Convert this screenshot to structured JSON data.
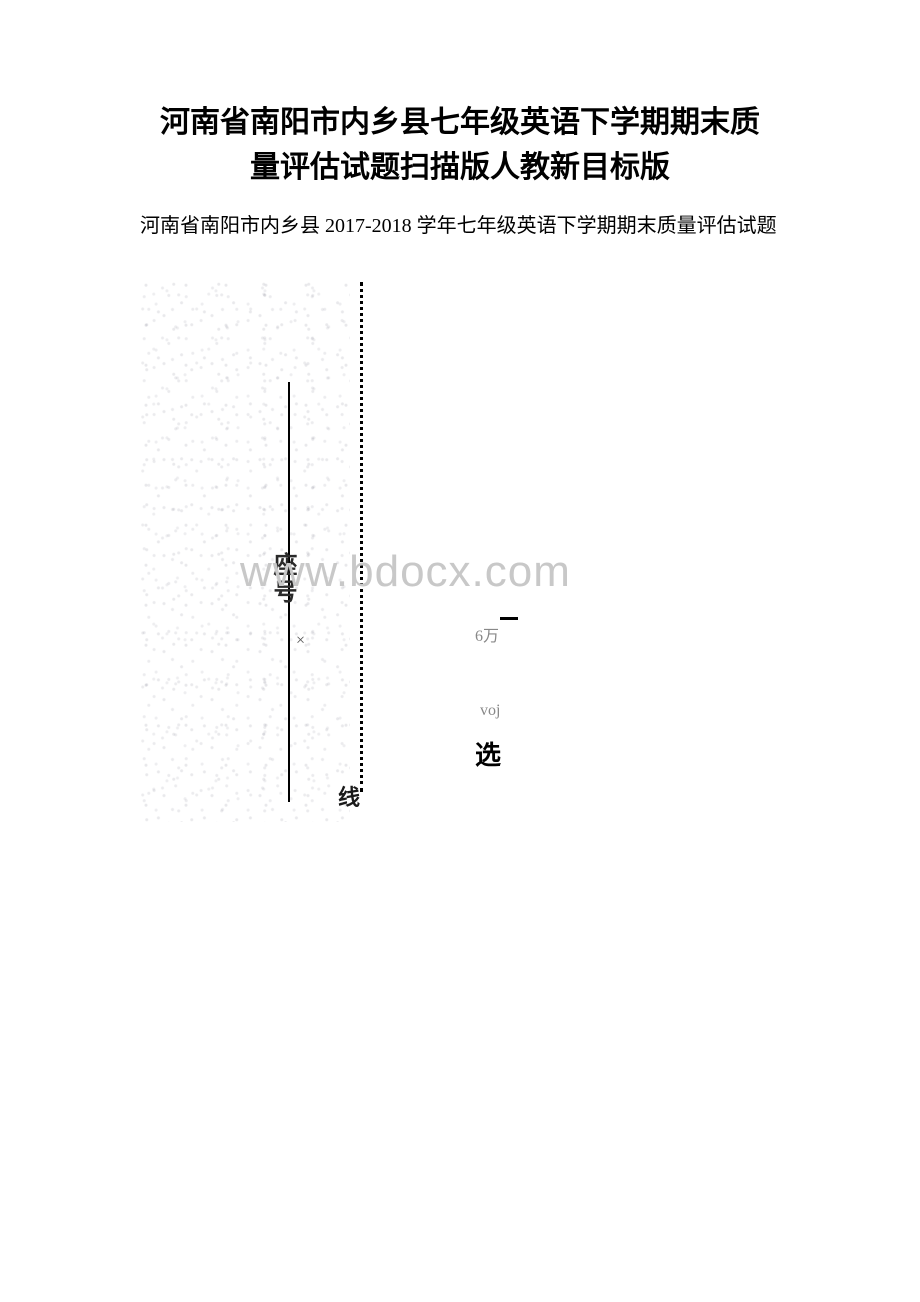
{
  "document": {
    "title_line1": "河南省南阳市内乡县七年级英语下学期期末质",
    "title_line2": "量评估试题扫描版人教新目标版",
    "subtitle": "河南省南阳市内乡县 2017-2018 学年七年级英语下学期期末质量评估试题",
    "background_color": "#ffffff",
    "text_color": "#000000",
    "title_fontsize": 30,
    "subtitle_fontsize": 20
  },
  "scan_content": {
    "watermark_text": "www.bdocx.com",
    "watermark_color": "#c8c8c8",
    "vertical_label_seat": "座号",
    "bottom_label_xian": "线",
    "bottom_label_xuan": "选",
    "small_text_1": "6万",
    "small_text_2": "voj",
    "x_mark": "×",
    "line_color": "#000000",
    "dotted_line_color": "#000000",
    "speckle_color": "rgba(100,100,120,0.13)"
  }
}
